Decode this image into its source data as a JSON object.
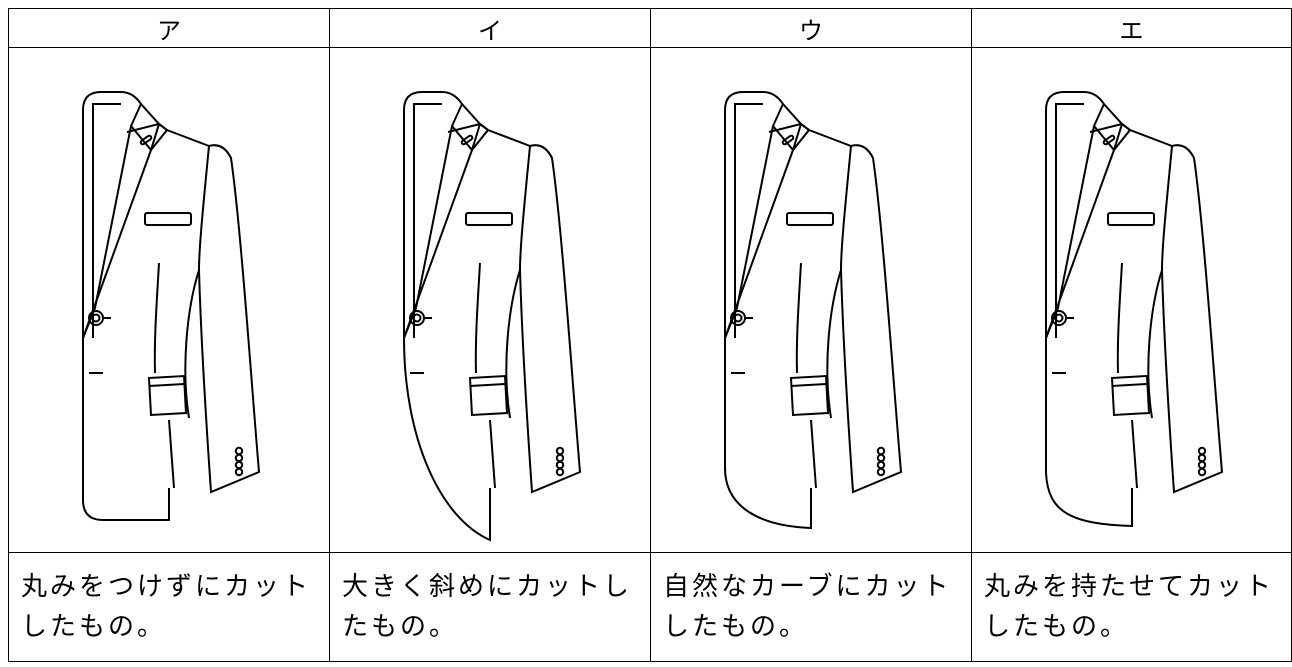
{
  "table": {
    "header": [
      "ア",
      "イ",
      "ウ",
      "エ"
    ],
    "rows": [
      [
        "丸みをつけずにカットしたもの。",
        "大きく斜めにカットしたもの。",
        "自然なカーブにカットしたもの。",
        "丸みを持たせてカットしたもの。"
      ]
    ]
  }
}
